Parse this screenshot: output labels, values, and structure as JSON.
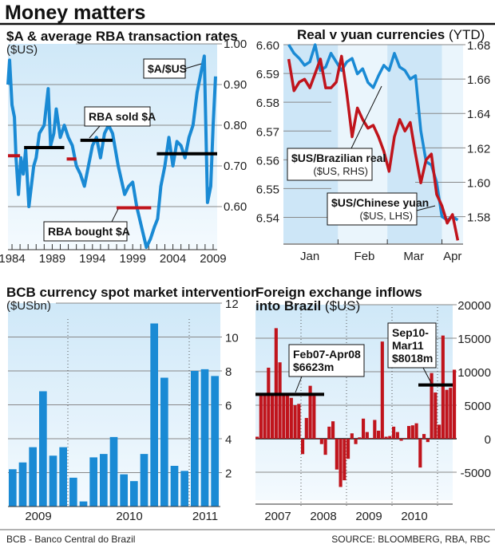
{
  "header": {
    "title": "Money matters"
  },
  "footer": {
    "left": "BCB - Banco Central do Brazil",
    "right": "SOURCE: BLOOMBERG, RBA, RBC"
  },
  "colors": {
    "blue": "#1a8ad4",
    "red": "#c0141c",
    "black": "#000000",
    "panel": "#d4ebf9"
  },
  "chart_data": [
    {
      "type": "line",
      "title": "$A & average RBA transaction rates",
      "subtitle": "($US)",
      "x_ticks": [
        "1984",
        "1989",
        "1994",
        "1999",
        "2004",
        "2009"
      ],
      "y_ticks": [
        "1.00",
        "0.90",
        "0.80",
        "0.70",
        "0.60"
      ],
      "xlim": [
        1984,
        2010
      ],
      "ylim": [
        0.5,
        1.0
      ],
      "grid": true,
      "series": [
        {
          "name": "$A/$US",
          "x": [
            1984.0,
            1984.2,
            1984.5,
            1984.8,
            1985.0,
            1985.3,
            1985.6,
            1985.9,
            1986.2,
            1986.6,
            1986.9,
            1987.2,
            1987.5,
            1987.9,
            1988.5,
            1989.0,
            1989.3,
            1989.7,
            1990.0,
            1990.5,
            1991.0,
            1991.5,
            1992.0,
            1992.5,
            1993.0,
            1993.5,
            1994.0,
            1994.5,
            1995.0,
            1995.5,
            1996.0,
            1996.5,
            1997.0,
            1997.7,
            1998.5,
            1999.0,
            1999.5,
            2000.0,
            2000.6,
            2001.2,
            2001.7,
            2002.2,
            2002.6,
            2003.0,
            2003.5,
            2004.0,
            2004.5,
            2005.0,
            2005.5,
            2006.0,
            2006.5,
            2007.0,
            2007.5,
            2008.0,
            2008.4,
            2008.8,
            2009.2,
            2009.5,
            2009.8
          ],
          "y": [
            0.9,
            0.96,
            0.85,
            0.82,
            0.72,
            0.63,
            0.72,
            0.68,
            0.74,
            0.6,
            0.65,
            0.7,
            0.72,
            0.78,
            0.8,
            0.89,
            0.75,
            0.78,
            0.84,
            0.77,
            0.8,
            0.77,
            0.75,
            0.7,
            0.68,
            0.65,
            0.7,
            0.75,
            0.77,
            0.72,
            0.78,
            0.8,
            0.78,
            0.7,
            0.63,
            0.65,
            0.66,
            0.6,
            0.55,
            0.5,
            0.52,
            0.55,
            0.57,
            0.65,
            0.7,
            0.77,
            0.7,
            0.76,
            0.75,
            0.72,
            0.77,
            0.8,
            0.88,
            0.93,
            0.97,
            0.61,
            0.65,
            0.8,
            0.92
          ]
        }
      ],
      "reference_lines": [
        {
          "kind": "bought",
          "from": 1984.0,
          "to": 1985.5,
          "value": 0.725
        },
        {
          "kind": "sold",
          "from": 1986.0,
          "to": 1991.0,
          "value": 0.745
        },
        {
          "kind": "bought",
          "from": 1991.3,
          "to": 1992.5,
          "value": 0.717
        },
        {
          "kind": "sold",
          "from": 1993.0,
          "to": 1997.0,
          "value": 0.763
        },
        {
          "kind": "bought",
          "from": 1997.5,
          "to": 2001.8,
          "value": 0.597
        },
        {
          "kind": "sold",
          "from": 2002.5,
          "to": 2010.0,
          "value": 0.73
        }
      ],
      "annotations": [
        "$A/$US",
        "RBA sold $A",
        "RBA bought $A"
      ]
    },
    {
      "type": "line",
      "title": "Real v yuan currencies",
      "title_suffix": "(YTD)",
      "x_ticks": [
        "Jan",
        "Feb",
        "Mar",
        "Apr"
      ],
      "y_left_ticks": [
        "6.60",
        "6.59",
        "6.58",
        "6.57",
        "6.56",
        "6.55",
        "6.54"
      ],
      "y_right_ticks": [
        "1.68",
        "1.66",
        "1.64",
        "1.62",
        "1.60",
        "1.58"
      ],
      "ylim_left": [
        6.531,
        6.6
      ],
      "ylim_right": [
        1.5645,
        1.68
      ],
      "series": [
        {
          "name": "$US/Brazilian real",
          "axis": "right",
          "color": "blue",
          "x": [
            3,
            6,
            9,
            12,
            15,
            18,
            21,
            24,
            27,
            30,
            33,
            36,
            39,
            42,
            45,
            48,
            51,
            54,
            57,
            60,
            63,
            66,
            69,
            72,
            75,
            78,
            81,
            84,
            87,
            90,
            93,
            96,
            99
          ],
          "y": [
            1.68,
            1.675,
            1.672,
            1.668,
            1.67,
            1.68,
            1.665,
            1.667,
            1.675,
            1.67,
            1.665,
            1.67,
            1.672,
            1.663,
            1.666,
            1.658,
            1.655,
            1.662,
            1.668,
            1.665,
            1.675,
            1.667,
            1.665,
            1.66,
            1.662,
            1.63,
            1.612,
            1.61,
            1.6,
            1.58,
            1.578,
            1.58,
            1.578
          ]
        },
        {
          "name": "$US/Chinese yuan",
          "axis": "left",
          "color": "red",
          "x": [
            3,
            6,
            9,
            12,
            15,
            18,
            21,
            24,
            27,
            30,
            33,
            36,
            39,
            42,
            45,
            48,
            51,
            54,
            57,
            60,
            63,
            66,
            69,
            72,
            75,
            78,
            81,
            84,
            87,
            90,
            93,
            96,
            99
          ],
          "y": [
            6.595,
            6.584,
            6.587,
            6.588,
            6.585,
            6.59,
            6.595,
            6.585,
            6.585,
            6.587,
            6.596,
            6.583,
            6.568,
            6.578,
            6.574,
            6.571,
            6.572,
            6.568,
            6.563,
            6.556,
            6.568,
            6.574,
            6.57,
            6.573,
            6.562,
            6.552,
            6.56,
            6.562,
            6.548,
            6.544,
            6.538,
            6.541,
            6.532
          ]
        }
      ],
      "annotations": [
        {
          "label": "$US/Brazilian real",
          "sub": "($US, RHS)"
        },
        {
          "label": "$US/Chinese yuan",
          "sub": "($US, LHS)"
        }
      ]
    },
    {
      "type": "bar",
      "title": "BCB currency spot market intervention",
      "subtitle": "($USbn)",
      "x_ticks": [
        "2009",
        "2010",
        "2011"
      ],
      "y_ticks": [
        "12",
        "10",
        "8",
        "6",
        "4",
        "2"
      ],
      "ylim": [
        0,
        12
      ],
      "values": [
        2.2,
        2.6,
        3.5,
        6.8,
        3.0,
        3.5,
        1.7,
        0.3,
        2.9,
        3.1,
        4.1,
        1.9,
        1.5,
        3.1,
        10.8,
        7.6,
        2.4,
        2.1,
        8.0,
        8.1,
        7.7
      ]
    },
    {
      "type": "bar",
      "title": "Foreign exchange inflows",
      "title_line2": "into Brazil",
      "subtitle": "($US)",
      "x_ticks": [
        "2007",
        "2008",
        "2009",
        "2010"
      ],
      "y_ticks": [
        "20000",
        "15000",
        "10000",
        "5000",
        "0",
        "-5000"
      ],
      "ylim": [
        -7500,
        20000
      ],
      "values": [
        300,
        6500,
        6500,
        10600,
        6500,
        16500,
        11400,
        6500,
        6500,
        6100,
        5000,
        5200,
        -2300,
        3100,
        7900,
        6400,
        100,
        -800,
        -2400,
        1800,
        2600,
        -4600,
        -7200,
        -6200,
        -3000,
        800,
        -800,
        200,
        3000,
        1000,
        100,
        2800,
        1200,
        14500,
        300,
        400,
        1800,
        1000,
        -300,
        100,
        1900,
        2000,
        2300,
        -4300,
        700,
        -500,
        9800,
        6900,
        2100,
        15400,
        7300,
        7600,
        10300
      ],
      "reference_lines": [
        {
          "label": "Feb07-Apr08",
          "amount": "$6623m",
          "value": 6623
        },
        {
          "label_1": "Sep10-",
          "label_2": "Mar11",
          "amount": "$8018m",
          "value": 8018
        }
      ]
    }
  ]
}
